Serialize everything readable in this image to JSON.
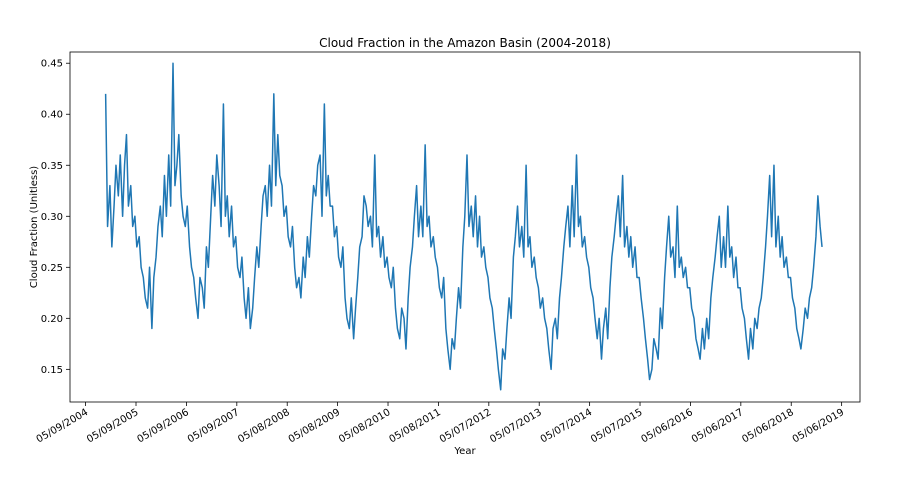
{
  "chart_data": {
    "type": "line",
    "title": "Cloud Fraction in the Amazon Basin (2004-2018)",
    "x_label": "Year",
    "y_label": "Cloud Fraction (Unitless)",
    "xlim": [
      "2004-01-17",
      "2019-09-16"
    ],
    "xticks": [
      {
        "value": "2004-05-09",
        "label": "05/09/2004"
      },
      {
        "value": "2005-05-09",
        "label": "05/09/2005"
      },
      {
        "value": "2006-05-09",
        "label": "05/09/2006"
      },
      {
        "value": "2007-05-09",
        "label": "05/09/2007"
      },
      {
        "value": "2008-05-08",
        "label": "05/08/2008"
      },
      {
        "value": "2009-05-08",
        "label": "05/08/2009"
      },
      {
        "value": "2010-05-08",
        "label": "05/08/2010"
      },
      {
        "value": "2011-05-08",
        "label": "05/08/2011"
      },
      {
        "value": "2012-05-07",
        "label": "05/07/2012"
      },
      {
        "value": "2013-05-07",
        "label": "05/07/2013"
      },
      {
        "value": "2014-05-07",
        "label": "05/07/2014"
      },
      {
        "value": "2015-05-07",
        "label": "05/07/2015"
      },
      {
        "value": "2016-05-06",
        "label": "05/06/2016"
      },
      {
        "value": "2017-05-06",
        "label": "05/06/2017"
      },
      {
        "value": "2018-05-06",
        "label": "05/06/2018"
      },
      {
        "value": "2019-05-06",
        "label": "05/06/2019"
      }
    ],
    "ylim": [
      0.118,
      0.461
    ],
    "yticks": [
      0.15,
      {
        "value": 0.2,
        "label": "0.20"
      },
      0.25,
      {
        "value": 0.3,
        "label": "0.30"
      },
      0.35,
      {
        "value": 0.4,
        "label": "0.40"
      },
      0.45
    ],
    "x": [
      "2004-10-01",
      "2004-10-15",
      "2004-11-01",
      "2004-11-15",
      "2004-12-01",
      "2004-12-15",
      "2005-01-01",
      "2005-01-15",
      "2005-02-01",
      "2005-02-15",
      "2005-03-01",
      "2005-03-15",
      "2005-04-01",
      "2005-04-15",
      "2005-05-01",
      "2005-05-15",
      "2005-06-01",
      "2005-06-15",
      "2005-07-01",
      "2005-07-15",
      "2005-08-01",
      "2005-08-15",
      "2005-09-01",
      "2005-09-15",
      "2005-10-01",
      "2005-10-15",
      "2005-11-01",
      "2005-11-15",
      "2005-12-01",
      "2005-12-15",
      "2006-01-01",
      "2006-01-15",
      "2006-02-01",
      "2006-02-15",
      "2006-03-01",
      "2006-03-15",
      "2006-04-01",
      "2006-04-15",
      "2006-05-01",
      "2006-05-15",
      "2006-06-01",
      "2006-06-15",
      "2006-07-01",
      "2006-07-15",
      "2006-08-01",
      "2006-08-15",
      "2006-09-01",
      "2006-09-15",
      "2006-10-01",
      "2006-10-15",
      "2006-11-01",
      "2006-11-15",
      "2006-12-01",
      "2006-12-15",
      "2007-01-01",
      "2007-01-15",
      "2007-02-01",
      "2007-02-15",
      "2007-03-01",
      "2007-03-15",
      "2007-04-01",
      "2007-04-15",
      "2007-05-01",
      "2007-05-15",
      "2007-06-01",
      "2007-06-15",
      "2007-07-01",
      "2007-07-15",
      "2007-08-01",
      "2007-08-15",
      "2007-09-01",
      "2007-09-15",
      "2007-10-01",
      "2007-10-15",
      "2007-11-01",
      "2007-11-15",
      "2007-12-01",
      "2007-12-15",
      "2008-01-01",
      "2008-01-15",
      "2008-02-01",
      "2008-02-15",
      "2008-03-01",
      "2008-03-15",
      "2008-04-01",
      "2008-04-15",
      "2008-05-01",
      "2008-05-15",
      "2008-06-01",
      "2008-06-15",
      "2008-07-01",
      "2008-07-15",
      "2008-08-01",
      "2008-08-15",
      "2008-09-01",
      "2008-09-15",
      "2008-10-01",
      "2008-10-15",
      "2008-11-01",
      "2008-11-15",
      "2008-12-01",
      "2008-12-15",
      "2009-01-01",
      "2009-01-15",
      "2009-02-01",
      "2009-02-15",
      "2009-03-01",
      "2009-03-15",
      "2009-04-01",
      "2009-04-15",
      "2009-05-01",
      "2009-05-15",
      "2009-06-01",
      "2009-06-15",
      "2009-07-01",
      "2009-07-15",
      "2009-08-01",
      "2009-08-15",
      "2009-09-01",
      "2009-09-15",
      "2009-10-01",
      "2009-10-15",
      "2009-11-01",
      "2009-11-15",
      "2009-12-01",
      "2009-12-15",
      "2010-01-01",
      "2010-01-15",
      "2010-02-01",
      "2010-02-15",
      "2010-03-01",
      "2010-03-15",
      "2010-04-01",
      "2010-04-15",
      "2010-05-01",
      "2010-05-15",
      "2010-06-01",
      "2010-06-15",
      "2010-07-01",
      "2010-07-15",
      "2010-08-01",
      "2010-08-15",
      "2010-09-01",
      "2010-09-15",
      "2010-10-01",
      "2010-10-15",
      "2010-11-01",
      "2010-11-15",
      "2010-12-01",
      "2010-12-15",
      "2011-01-01",
      "2011-01-15",
      "2011-02-01",
      "2011-02-15",
      "2011-03-01",
      "2011-03-15",
      "2011-04-01",
      "2011-04-15",
      "2011-05-01",
      "2011-05-15",
      "2011-06-01",
      "2011-06-15",
      "2011-07-01",
      "2011-07-15",
      "2011-08-01",
      "2011-08-15",
      "2011-09-01",
      "2011-09-15",
      "2011-10-01",
      "2011-10-15",
      "2011-11-01",
      "2011-11-15",
      "2011-12-01",
      "2011-12-15",
      "2012-01-01",
      "2012-01-15",
      "2012-02-01",
      "2012-02-15",
      "2012-03-01",
      "2012-03-15",
      "2012-04-01",
      "2012-04-15",
      "2012-05-01",
      "2012-05-15",
      "2012-06-01",
      "2012-06-15",
      "2012-07-01",
      "2012-07-15",
      "2012-08-01",
      "2012-08-15",
      "2012-09-01",
      "2012-09-15",
      "2012-10-01",
      "2012-10-15",
      "2012-11-01",
      "2012-11-15",
      "2012-12-01",
      "2012-12-15",
      "2013-01-01",
      "2013-01-15",
      "2013-02-01",
      "2013-02-15",
      "2013-03-01",
      "2013-03-15",
      "2013-04-01",
      "2013-04-15",
      "2013-05-01",
      "2013-05-15",
      "2013-06-01",
      "2013-06-15",
      "2013-07-01",
      "2013-07-15",
      "2013-08-01",
      "2013-08-15",
      "2013-09-01",
      "2013-09-15",
      "2013-10-01",
      "2013-10-15",
      "2013-11-01",
      "2013-11-15",
      "2013-12-01",
      "2013-12-15",
      "2014-01-01",
      "2014-01-15",
      "2014-02-01",
      "2014-02-15",
      "2014-03-01",
      "2014-03-15",
      "2014-04-01",
      "2014-04-15",
      "2014-05-01",
      "2014-05-15",
      "2014-06-01",
      "2014-06-15",
      "2014-07-01",
      "2014-07-15",
      "2014-08-01",
      "2014-08-15",
      "2014-09-01",
      "2014-09-15",
      "2014-10-01",
      "2014-10-15",
      "2014-11-01",
      "2014-11-15",
      "2014-12-01",
      "2014-12-15",
      "2015-01-01",
      "2015-01-15",
      "2015-02-01",
      "2015-02-15",
      "2015-03-01",
      "2015-03-15",
      "2015-04-01",
      "2015-04-15",
      "2015-05-01",
      "2015-05-15",
      "2015-06-01",
      "2015-06-15",
      "2015-07-01",
      "2015-07-15",
      "2015-08-01",
      "2015-08-15",
      "2015-09-01",
      "2015-09-15",
      "2015-10-01",
      "2015-10-15",
      "2015-11-01",
      "2015-11-15",
      "2015-12-01",
      "2015-12-15",
      "2016-01-01",
      "2016-01-15",
      "2016-02-01",
      "2016-02-15",
      "2016-03-01",
      "2016-03-15",
      "2016-04-01",
      "2016-04-15",
      "2016-05-01",
      "2016-05-15",
      "2016-06-01",
      "2016-06-15",
      "2016-07-01",
      "2016-07-15",
      "2016-08-01",
      "2016-08-15",
      "2016-09-01",
      "2016-09-15",
      "2016-10-01",
      "2016-10-15",
      "2016-11-01",
      "2016-11-15",
      "2016-12-01",
      "2016-12-15",
      "2017-01-01",
      "2017-01-15",
      "2017-02-01",
      "2017-02-15",
      "2017-03-01",
      "2017-03-15",
      "2017-04-01",
      "2017-04-15",
      "2017-05-01",
      "2017-05-15",
      "2017-06-01",
      "2017-06-15",
      "2017-07-01",
      "2017-07-15",
      "2017-08-01",
      "2017-08-15",
      "2017-09-01",
      "2017-09-15",
      "2017-10-01",
      "2017-10-15",
      "2017-11-01",
      "2017-11-15",
      "2017-12-01",
      "2017-12-15",
      "2018-01-01",
      "2018-01-15",
      "2018-02-01",
      "2018-02-15",
      "2018-03-01",
      "2018-03-15",
      "2018-04-01",
      "2018-04-15",
      "2018-05-01",
      "2018-05-15",
      "2018-06-01",
      "2018-06-15",
      "2018-07-01",
      "2018-07-15",
      "2018-08-01",
      "2018-08-15",
      "2018-09-01",
      "2018-09-15",
      "2018-10-01",
      "2018-10-15",
      "2018-11-01",
      "2018-11-15",
      "2018-12-01",
      "2018-12-15"
    ],
    "series": [
      {
        "color": "#1f77b4",
        "values": [
          0.42,
          0.29,
          0.33,
          0.27,
          0.31,
          0.35,
          0.32,
          0.36,
          0.3,
          0.35,
          0.38,
          0.31,
          0.33,
          0.29,
          0.3,
          0.27,
          0.28,
          0.25,
          0.24,
          0.22,
          0.21,
          0.25,
          0.19,
          0.24,
          0.26,
          0.29,
          0.31,
          0.28,
          0.34,
          0.3,
          0.36,
          0.31,
          0.45,
          0.33,
          0.35,
          0.38,
          0.32,
          0.3,
          0.29,
          0.31,
          0.27,
          0.25,
          0.24,
          0.22,
          0.2,
          0.24,
          0.23,
          0.21,
          0.27,
          0.25,
          0.3,
          0.34,
          0.31,
          0.36,
          0.33,
          0.29,
          0.41,
          0.3,
          0.32,
          0.28,
          0.31,
          0.27,
          0.28,
          0.25,
          0.24,
          0.26,
          0.22,
          0.2,
          0.23,
          0.19,
          0.21,
          0.24,
          0.27,
          0.25,
          0.29,
          0.32,
          0.33,
          0.3,
          0.35,
          0.31,
          0.42,
          0.33,
          0.38,
          0.34,
          0.33,
          0.3,
          0.31,
          0.28,
          0.27,
          0.29,
          0.25,
          0.23,
          0.24,
          0.22,
          0.26,
          0.24,
          0.28,
          0.26,
          0.3,
          0.33,
          0.32,
          0.35,
          0.36,
          0.3,
          0.41,
          0.32,
          0.34,
          0.31,
          0.31,
          0.28,
          0.29,
          0.26,
          0.25,
          0.27,
          0.22,
          0.2,
          0.19,
          0.22,
          0.18,
          0.21,
          0.24,
          0.27,
          0.28,
          0.32,
          0.31,
          0.29,
          0.3,
          0.27,
          0.36,
          0.28,
          0.29,
          0.26,
          0.28,
          0.25,
          0.26,
          0.24,
          0.23,
          0.25,
          0.21,
          0.19,
          0.18,
          0.21,
          0.2,
          0.17,
          0.22,
          0.25,
          0.27,
          0.3,
          0.33,
          0.28,
          0.31,
          0.28,
          0.37,
          0.29,
          0.3,
          0.27,
          0.28,
          0.26,
          0.25,
          0.23,
          0.22,
          0.24,
          0.19,
          0.17,
          0.15,
          0.18,
          0.17,
          0.2,
          0.23,
          0.21,
          0.27,
          0.3,
          0.36,
          0.29,
          0.31,
          0.28,
          0.32,
          0.27,
          0.3,
          0.26,
          0.27,
          0.25,
          0.24,
          0.22,
          0.21,
          0.19,
          0.17,
          0.15,
          0.13,
          0.17,
          0.16,
          0.19,
          0.22,
          0.2,
          0.26,
          0.28,
          0.31,
          0.27,
          0.29,
          0.26,
          0.35,
          0.27,
          0.28,
          0.25,
          0.26,
          0.24,
          0.23,
          0.21,
          0.22,
          0.2,
          0.19,
          0.17,
          0.15,
          0.19,
          0.2,
          0.18,
          0.22,
          0.24,
          0.27,
          0.29,
          0.31,
          0.27,
          0.33,
          0.28,
          0.36,
          0.29,
          0.3,
          0.27,
          0.28,
          0.26,
          0.25,
          0.23,
          0.22,
          0.2,
          0.18,
          0.2,
          0.16,
          0.19,
          0.21,
          0.18,
          0.23,
          0.26,
          0.28,
          0.3,
          0.32,
          0.28,
          0.34,
          0.27,
          0.29,
          0.26,
          0.28,
          0.25,
          0.27,
          0.24,
          0.24,
          0.22,
          0.2,
          0.18,
          0.16,
          0.14,
          0.15,
          0.18,
          0.17,
          0.16,
          0.21,
          0.19,
          0.24,
          0.27,
          0.3,
          0.26,
          0.27,
          0.24,
          0.31,
          0.25,
          0.26,
          0.24,
          0.25,
          0.23,
          0.23,
          0.21,
          0.2,
          0.18,
          0.17,
          0.16,
          0.19,
          0.17,
          0.2,
          0.18,
          0.22,
          0.24,
          0.26,
          0.28,
          0.3,
          0.25,
          0.28,
          0.25,
          0.31,
          0.26,
          0.27,
          0.24,
          0.26,
          0.23,
          0.23,
          0.21,
          0.2,
          0.18,
          0.16,
          0.19,
          0.17,
          0.2,
          0.19,
          0.21,
          0.22,
          0.24,
          0.27,
          0.3,
          0.34,
          0.28,
          0.35,
          0.27,
          0.3,
          0.26,
          0.28,
          0.25,
          0.26,
          0.24,
          0.24,
          0.22,
          0.21,
          0.19,
          0.18,
          0.17,
          0.19,
          0.21,
          0.2,
          0.22,
          0.23,
          0.25,
          0.28,
          0.32,
          0.29,
          0.27
        ]
      }
    ]
  }
}
